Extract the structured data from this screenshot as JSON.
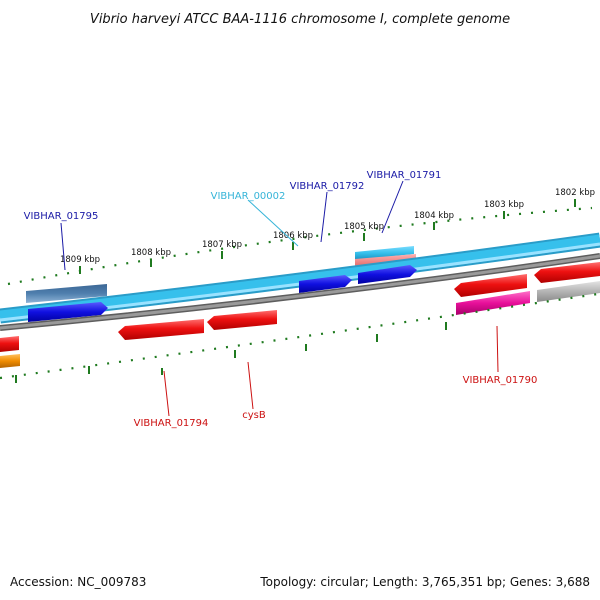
{
  "title": "Vibrio harveyi ATCC BAA-1116 chromosome I, complete genome",
  "footer": {
    "accession": "Accession: NC_009783",
    "summary": "Topology: circular; Length: 3,765,351 bp; Genes: 3,688"
  },
  "colors": {
    "plus_backbone": "#36c0ec",
    "minus_backbone": "#8a8a8a",
    "tick": "#1f7a1f",
    "label_blue": "#1a1aa6",
    "label_cyan": "#36b4d8",
    "label_red": "#cc1111",
    "gene_blue": "#1010e0",
    "gene_steel": "#4f7fae",
    "gene_red": "#ee1111",
    "gene_pink": "#e8109a",
    "gene_gray": "#b4b4b4",
    "gene_orange": "#f08c00"
  },
  "scale": {
    "unit": "kbp",
    "ticks": [
      {
        "pos": 1809,
        "label": "1809 kbp"
      },
      {
        "pos": 1808,
        "label": "1808 kbp"
      },
      {
        "pos": 1807,
        "label": "1807 kbp"
      },
      {
        "pos": 1806,
        "label": "1806 kbp"
      },
      {
        "pos": 1805,
        "label": "1805 kbp"
      },
      {
        "pos": 1804,
        "label": "1804 kbp"
      },
      {
        "pos": 1803,
        "label": "1803 kbp"
      },
      {
        "pos": 1802,
        "label": "1802 kbp"
      }
    ]
  },
  "labels": [
    {
      "id": "VIBHAR_01795",
      "text": "VIBHAR_01795",
      "color": "label_blue"
    },
    {
      "id": "VIBHAR_00002",
      "text": "VIBHAR_00002",
      "color": "label_cyan"
    },
    {
      "id": "VIBHAR_01792",
      "text": "VIBHAR_01792",
      "color": "label_blue"
    },
    {
      "id": "VIBHAR_01791",
      "text": "VIBHAR_01791",
      "color": "label_blue"
    },
    {
      "id": "VIBHAR_01794",
      "text": "VIBHAR_01794",
      "color": "label_red"
    },
    {
      "id": "cysB",
      "text": "cysB",
      "color": "label_red"
    },
    {
      "id": "VIBHAR_01790",
      "text": "VIBHAR_01790",
      "color": "label_red"
    }
  ]
}
